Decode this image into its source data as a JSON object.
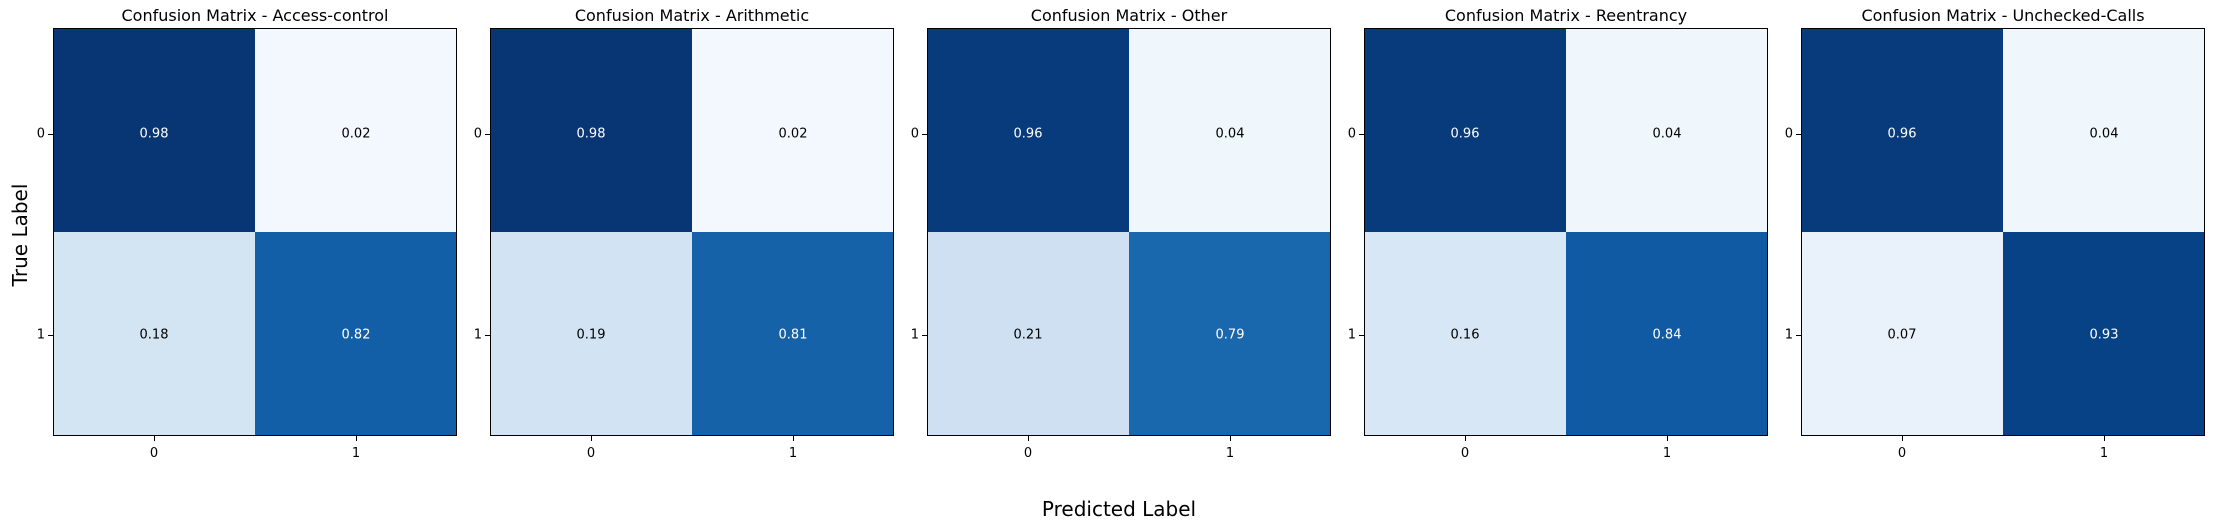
{
  "figure": {
    "xlabel": "Predicted Label",
    "ylabel": "True Label"
  },
  "chart_data": [
    {
      "type": "heatmap",
      "title": "Confusion Matrix - Access-control",
      "x_categories": [
        "0",
        "1"
      ],
      "y_categories": [
        "0",
        "1"
      ],
      "values": [
        [
          0.98,
          0.02
        ],
        [
          0.18,
          0.82
        ]
      ],
      "labels": [
        [
          "0.98",
          "0.02"
        ],
        [
          "0.18",
          "0.82"
        ]
      ],
      "colormap": "Blues",
      "value_range": [
        0,
        1
      ]
    },
    {
      "type": "heatmap",
      "title": "Confusion Matrix - Arithmetic",
      "x_categories": [
        "0",
        "1"
      ],
      "y_categories": [
        "0",
        "1"
      ],
      "values": [
        [
          0.98,
          0.02
        ],
        [
          0.19,
          0.81
        ]
      ],
      "labels": [
        [
          "0.98",
          "0.02"
        ],
        [
          "0.19",
          "0.81"
        ]
      ],
      "colormap": "Blues",
      "value_range": [
        0,
        1
      ]
    },
    {
      "type": "heatmap",
      "title": "Confusion Matrix - Other",
      "x_categories": [
        "0",
        "1"
      ],
      "y_categories": [
        "0",
        "1"
      ],
      "values": [
        [
          0.96,
          0.04
        ],
        [
          0.21,
          0.79
        ]
      ],
      "labels": [
        [
          "0.96",
          "0.04"
        ],
        [
          "0.21",
          "0.79"
        ]
      ],
      "colormap": "Blues",
      "value_range": [
        0,
        1
      ]
    },
    {
      "type": "heatmap",
      "title": "Confusion Matrix - Reentrancy",
      "x_categories": [
        "0",
        "1"
      ],
      "y_categories": [
        "0",
        "1"
      ],
      "values": [
        [
          0.96,
          0.04
        ],
        [
          0.16,
          0.84
        ]
      ],
      "labels": [
        [
          "0.96",
          "0.04"
        ],
        [
          "0.16",
          "0.84"
        ]
      ],
      "colormap": "Blues",
      "value_range": [
        0,
        1
      ]
    },
    {
      "type": "heatmap",
      "title": "Confusion Matrix - Unchecked-Calls",
      "x_categories": [
        "0",
        "1"
      ],
      "y_categories": [
        "0",
        "1"
      ],
      "values": [
        [
          0.96,
          0.04
        ],
        [
          0.07,
          0.93
        ]
      ],
      "labels": [
        [
          "0.96",
          "0.04"
        ],
        [
          "0.07",
          "0.93"
        ]
      ],
      "colormap": "Blues",
      "value_range": [
        0,
        1
      ]
    }
  ]
}
